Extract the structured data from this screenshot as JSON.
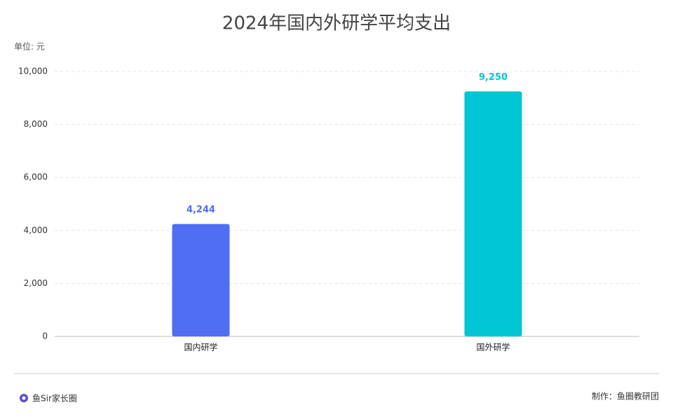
{
  "chart_data": {
    "type": "bar",
    "title": "2024年国内外研学平均支出",
    "unit_label": "单位: 元",
    "categories": [
      "国内研学",
      "国外研学"
    ],
    "values": [
      4244,
      9250
    ],
    "value_labels": [
      "4,244",
      "9,250"
    ],
    "colors": [
      "#4f6ef2",
      "#00c5d4"
    ],
    "ylim": [
      0,
      10000
    ],
    "yticks": [
      0,
      {
        "value": 2000,
        "label": "2,000"
      },
      {
        "value": 4000,
        "label": "4,000"
      },
      {
        "value": 6000,
        "label": "6,000"
      },
      {
        "value": 8000,
        "label": "8,000"
      },
      {
        "value": 10000,
        "label": "10,000"
      }
    ],
    "grid": true
  },
  "footer": {
    "logo_text": "鱼Sir家长圈",
    "credit": "制作：鱼圈教研团"
  }
}
